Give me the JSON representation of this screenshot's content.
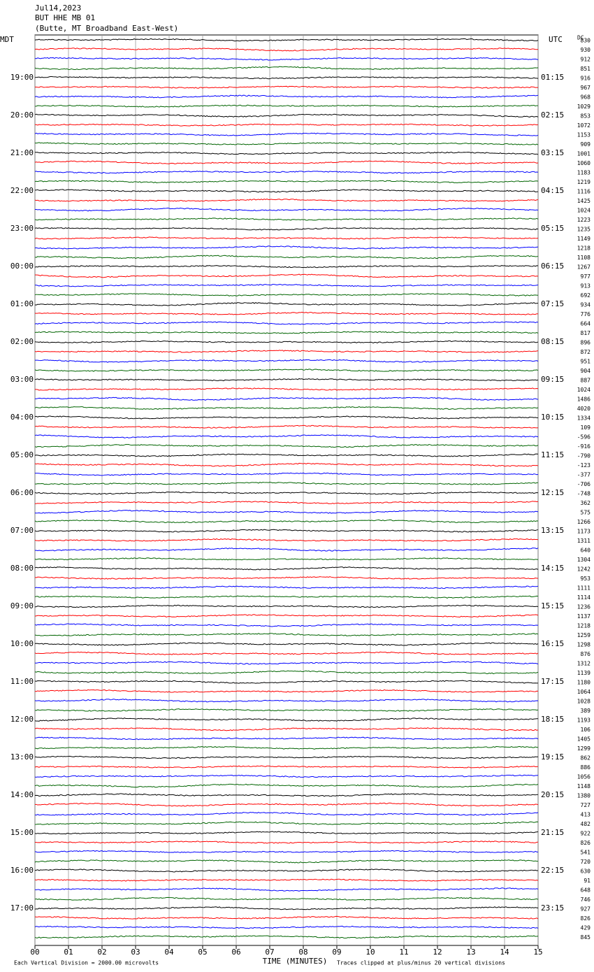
{
  "chart_data": {
    "type": "helicorder",
    "date": "Jul14,2023",
    "station": "BUT HHE MB 01",
    "location": "(Butte, MT Broadband East-West)",
    "left_unit": "MDT",
    "right_unit": "UTC",
    "dc_label": "DC",
    "xlabel": "TIME (MINUTES)",
    "footnote_left": "Each Vertical Division = 2000.00 microvolts",
    "footnote_right": "Traces clipped at plus/minus 20 vertical divisions",
    "xlim": [
      0,
      15
    ],
    "xticks": [
      {
        "value": 0,
        "label": "00"
      },
      {
        "value": 1,
        "label": "01"
      },
      {
        "value": 2,
        "label": "02"
      },
      {
        "value": 3,
        "label": "03"
      },
      {
        "value": 4,
        "label": "04"
      },
      {
        "value": 5,
        "label": "05"
      },
      {
        "value": 6,
        "label": "06"
      },
      {
        "value": 7,
        "label": "07"
      },
      {
        "value": 8,
        "label": "08"
      },
      {
        "value": 9,
        "label": "09"
      },
      10,
      11,
      12,
      13,
      14,
      15
    ],
    "grid": true,
    "trace_colors": [
      "#000000",
      "#ff0000",
      "#0000ff",
      "#006400"
    ],
    "left_labels": [
      null,
      "19:00",
      "20:00",
      "21:00",
      "22:00",
      "23:00",
      "00:00",
      "01:00",
      "02:00",
      "03:00",
      "04:00",
      "05:00",
      "06:00",
      "07:00",
      "08:00",
      "09:00",
      "10:00",
      "11:00",
      "12:00",
      "13:00",
      "14:00",
      "15:00",
      "16:00",
      "17:00"
    ],
    "right_labels": [
      null,
      "01:15",
      "02:15",
      "03:15",
      "04:15",
      "05:15",
      "06:15",
      "07:15",
      "08:15",
      "09:15",
      "10:15",
      "11:15",
      "12:15",
      "13:15",
      "14:15",
      "15:15",
      "16:15",
      "17:15",
      "18:15",
      "19:15",
      "20:15",
      "21:15",
      "22:15",
      "23:15"
    ],
    "dc_offsets": [
      830,
      930,
      912,
      851,
      916,
      967,
      968,
      1029,
      853,
      1072,
      1153,
      909,
      1001,
      1060,
      1183,
      1219,
      1116,
      1425,
      1024,
      1223,
      1235,
      1149,
      1218,
      1108,
      1267,
      977,
      913,
      692,
      934,
      776,
      664,
      817,
      896,
      872,
      951,
      904,
      887,
      1024,
      1486,
      4020,
      1334,
      109,
      -596,
      -916,
      -790,
      -123,
      -377,
      -706,
      -748,
      362,
      575,
      1266,
      1173,
      1311,
      640,
      1304,
      1242,
      953,
      1111,
      1114,
      1236,
      1137,
      1218,
      1259,
      1298,
      876,
      1312,
      1139,
      1180,
      1064,
      1028,
      389,
      1193,
      106,
      1405,
      1299,
      862,
      886,
      1056,
      1148,
      1380,
      727,
      413,
      482,
      922,
      826,
      541,
      720,
      630,
      91,
      648,
      746,
      927,
      826,
      429,
      845
    ]
  }
}
